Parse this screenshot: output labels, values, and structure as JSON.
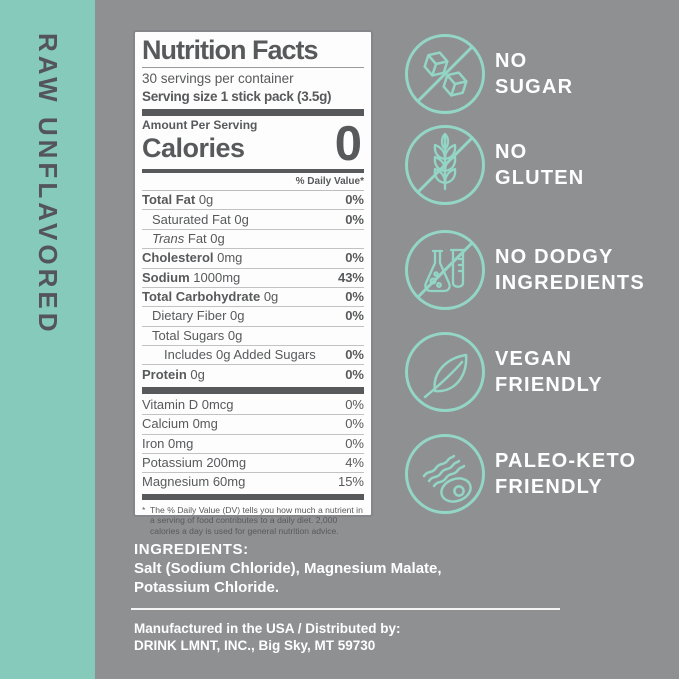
{
  "side_strip": {
    "label": "RAW UNFLAVORED"
  },
  "colors": {
    "accent_teal": "#86CABC",
    "icon_stroke_teal": "#93D6C6",
    "background_gray": "#8F9092",
    "label_text_gray": "#58595B",
    "claim_text_white": "#FFFFFF"
  },
  "nutrition_label": {
    "title": "Nutrition Facts",
    "servings_per_container": "30 servings per container",
    "serving_size": "Serving size 1 stick pack (3.5g)",
    "amount_per_serving": "Amount Per Serving",
    "calories_label": "Calories",
    "calories_value": "0",
    "daily_value_header": "% Daily Value*",
    "rows": [
      {
        "label": "Total Fat",
        "amount": "0g",
        "dv": "0%",
        "bold": true,
        "dv_bold": true,
        "indent": 0
      },
      {
        "label": "Saturated Fat",
        "amount": "0g",
        "dv": "0%",
        "bold": false,
        "dv_bold": true,
        "indent": 1
      },
      {
        "italic_prefix": "Trans",
        "label": "Fat",
        "amount": "0g",
        "dv": "",
        "bold": false,
        "dv_bold": false,
        "indent": 1
      },
      {
        "label": "Cholesterol",
        "amount": "0mg",
        "dv": "0%",
        "bold": true,
        "dv_bold": true,
        "indent": 0
      },
      {
        "label": "Sodium",
        "amount": "1000mg",
        "dv": "43%",
        "bold": true,
        "dv_bold": true,
        "indent": 0
      },
      {
        "label": "Total Carbohydrate",
        "amount": "0g",
        "dv": "0%",
        "bold": true,
        "dv_bold": true,
        "indent": 0
      },
      {
        "label": "Dietary Fiber",
        "amount": "0g",
        "dv": "0%",
        "bold": false,
        "dv_bold": true,
        "indent": 1
      },
      {
        "label": "Total Sugars",
        "amount": "0g",
        "dv": "",
        "bold": false,
        "dv_bold": false,
        "indent": 1
      },
      {
        "label": "Includes 0g Added Sugars",
        "amount": "",
        "dv": "0%",
        "bold": false,
        "dv_bold": true,
        "indent": 2
      },
      {
        "label": "Protein",
        "amount": "0g",
        "dv": "0%",
        "bold": true,
        "dv_bold": true,
        "indent": 0
      }
    ],
    "micronutrients": [
      {
        "label": "Vitamin D",
        "amount": "0mcg",
        "dv": "0%",
        "bold": false,
        "dv_bold": false,
        "indent": 0
      },
      {
        "label": "Calcium",
        "amount": "0mg",
        "dv": "0%",
        "bold": false,
        "dv_bold": false,
        "indent": 0
      },
      {
        "label": "Iron",
        "amount": "0mg",
        "dv": "0%",
        "bold": false,
        "dv_bold": false,
        "indent": 0
      },
      {
        "label": "Potassium",
        "amount": "200mg",
        "dv": "4%",
        "bold": false,
        "dv_bold": false,
        "indent": 0
      },
      {
        "label": "Magnesium",
        "amount": "60mg",
        "dv": "15%",
        "bold": false,
        "dv_bold": false,
        "indent": 0
      }
    ],
    "footnote_marker": "*",
    "footnote": "The % Daily Value (DV) tells you how much a nutrient in a serving of food contributes to a daily diet. 2,000 calories a day is used for general nutrition advice."
  },
  "claims": [
    {
      "icon": "no-sugar-icon",
      "lines": [
        "NO",
        "SUGAR"
      ]
    },
    {
      "icon": "no-gluten-icon",
      "lines": [
        "NO",
        "GLUTEN"
      ]
    },
    {
      "icon": "no-dodgy-ingredients-icon",
      "lines": [
        "NO DODGY",
        "INGREDIENTS"
      ]
    },
    {
      "icon": "vegan-friendly-icon",
      "lines": [
        "VEGAN",
        "FRIENDLY"
      ]
    },
    {
      "icon": "paleo-keto-friendly-icon",
      "lines": [
        "PALEO-KETO",
        "FRIENDLY"
      ]
    }
  ],
  "ingredients": {
    "heading": "INGREDIENTS:",
    "text": "Salt (Sodium Chloride), Magnesium Malate,\nPotassium Chloride."
  },
  "distribution": {
    "text": "Manufactured in the USA / Distributed by:\nDRINK LMNT, INC., Big Sky, MT 59730"
  }
}
